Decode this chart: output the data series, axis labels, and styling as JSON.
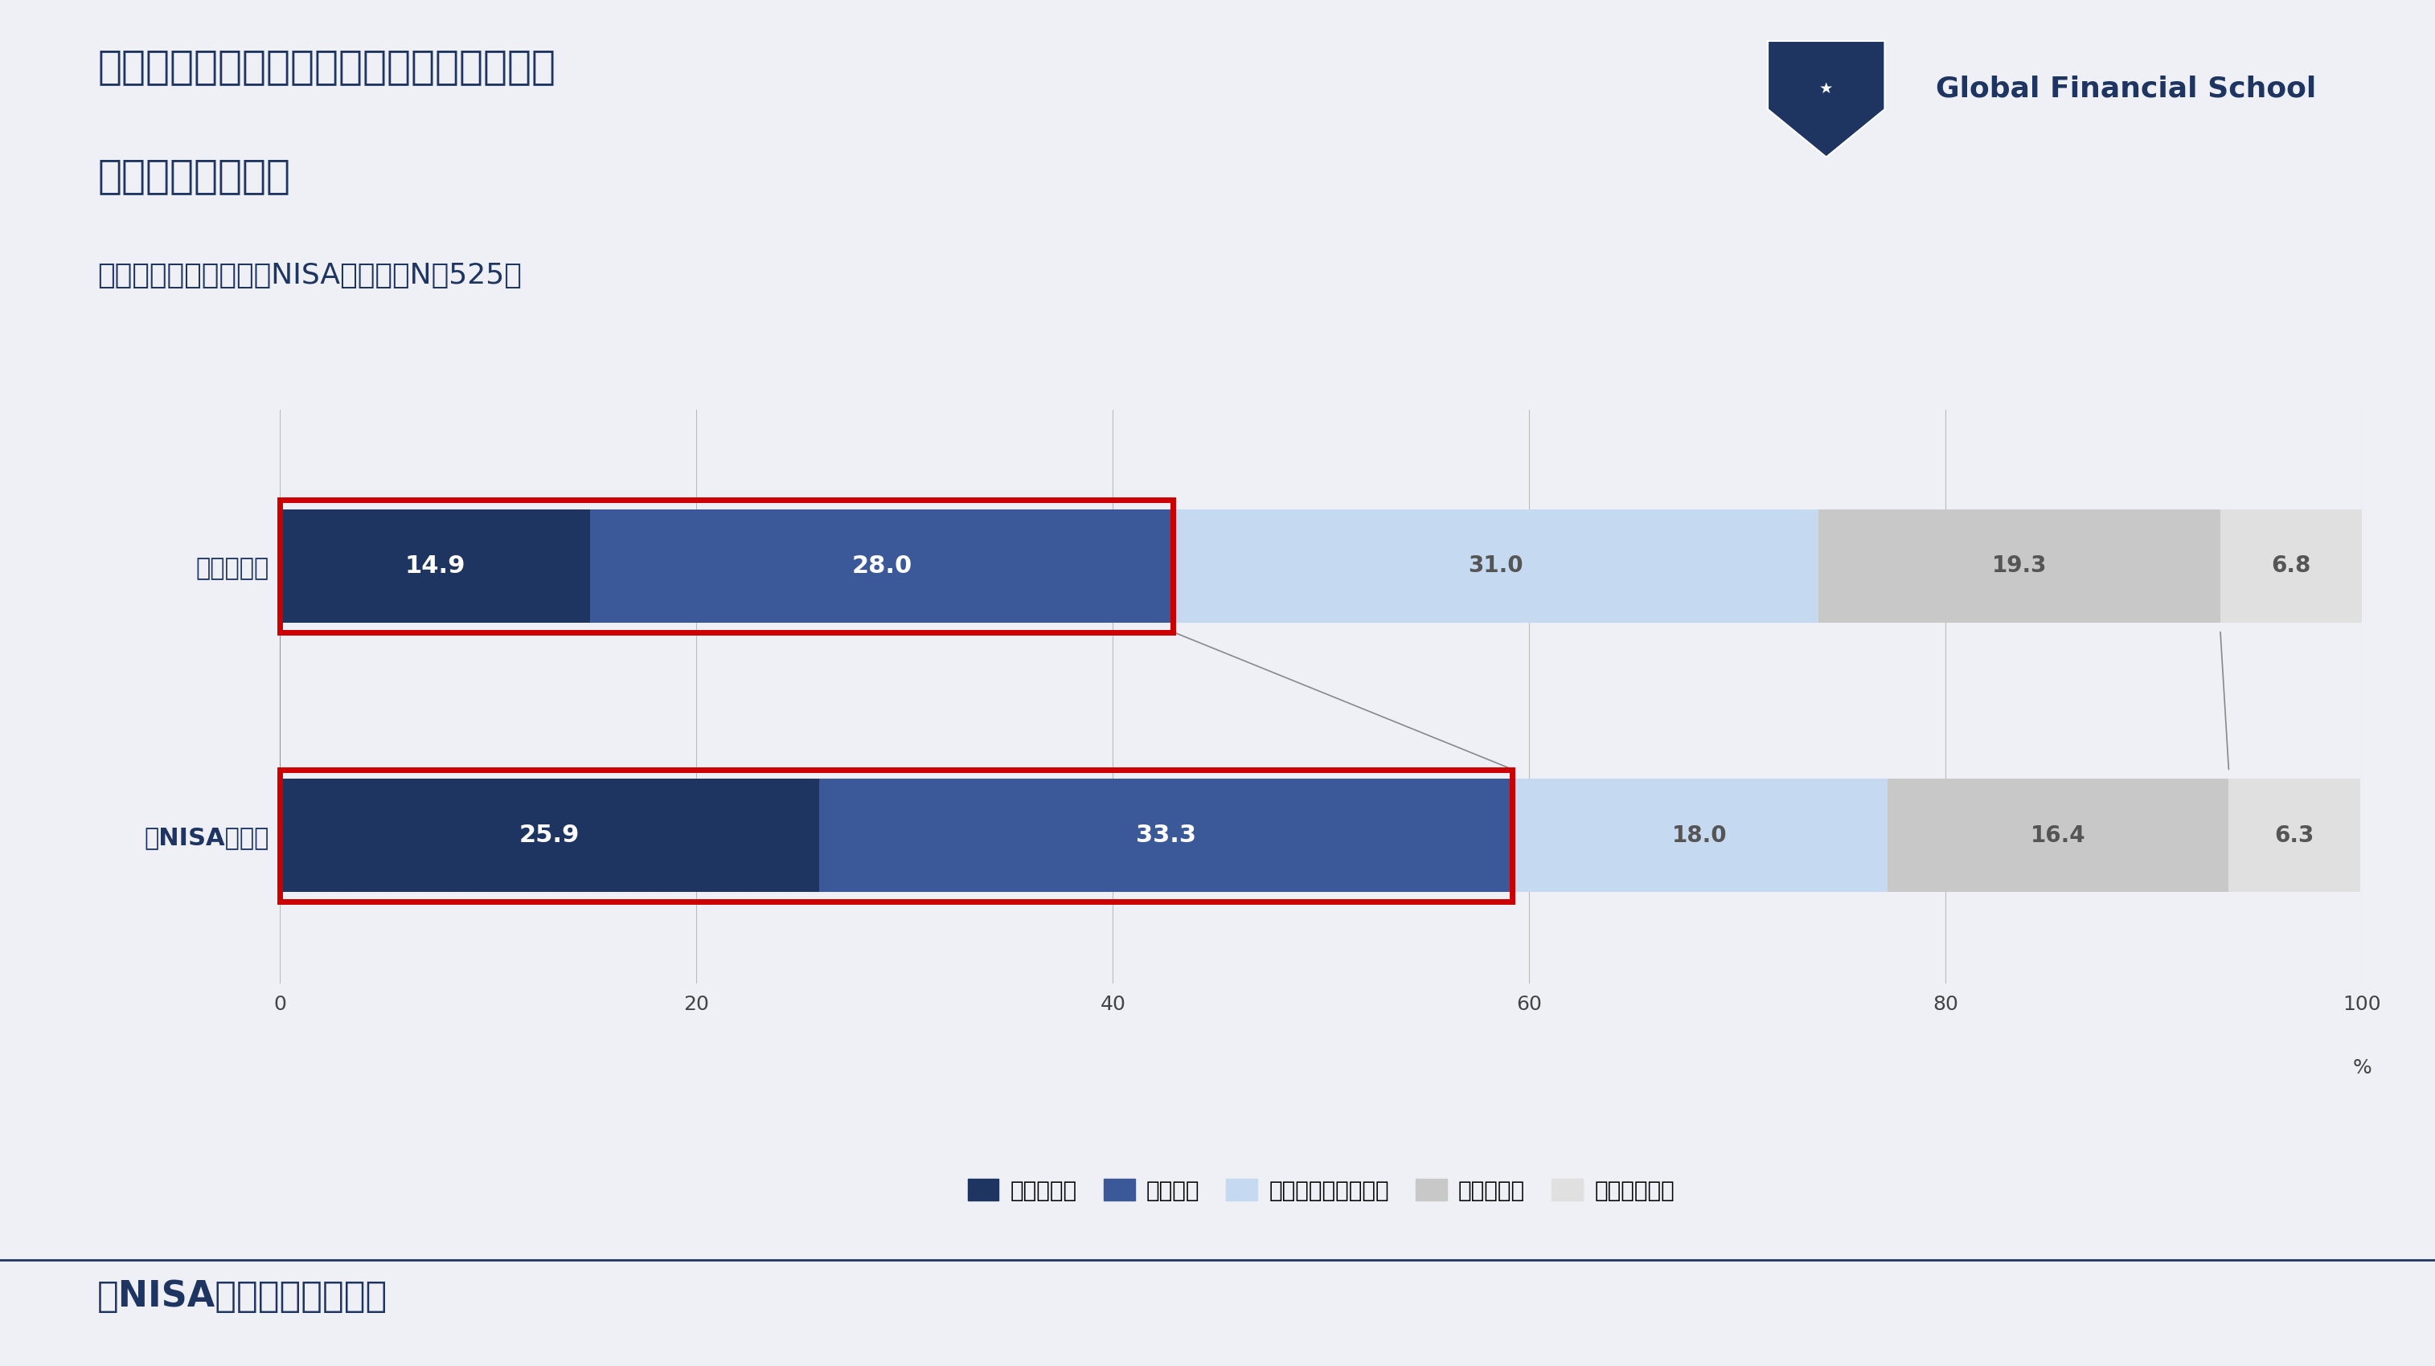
{
  "title_line1": "投資に関する金融知識への自信に対する、",
  "title_line2": "あなたのお気持ち",
  "subtitle": "（お答えはひとつ／新NISA利用者：N＝525）",
  "categories": [
    "既存投資層",
    "新NISA参入層"
  ],
  "segments": [
    "とてもある",
    "ややある",
    "どちらともいえない",
    "あまりない",
    "まったくない"
  ],
  "values": [
    [
      14.9,
      28.0,
      31.0,
      19.3,
      6.8
    ],
    [
      25.9,
      33.3,
      18.0,
      16.4,
      6.3
    ]
  ],
  "colors": [
    "#1e3461",
    "#3b5998",
    "#c5d9f1",
    "#c8c8c8",
    "#e0e0e0"
  ],
  "bar_height": 0.42,
  "bg_color": "#eef0f6",
  "text_color_dark": "#1e3461",
  "text_color_bar": "#ffffff",
  "red_box_color": "#cc0000",
  "logo_text": "Global Financial School",
  "footer_text": "新NISA利用者の意識調査",
  "xlim": [
    0,
    100
  ],
  "xticks": [
    0,
    20,
    40,
    60,
    80,
    100
  ],
  "xlabel_extra": "%",
  "connect_line_color": "#888888",
  "grid_color": "#bbbbbb"
}
